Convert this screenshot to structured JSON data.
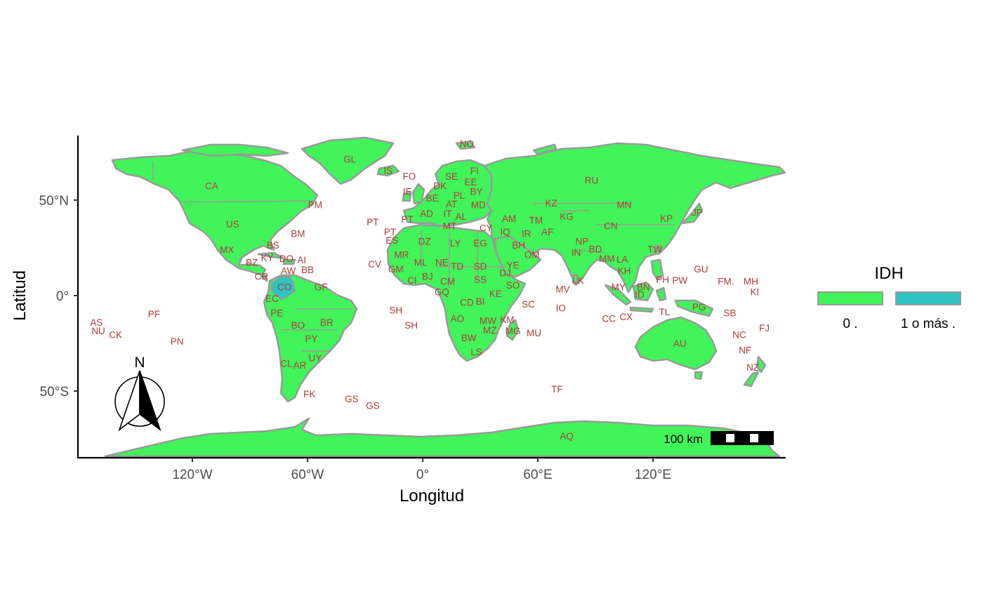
{
  "axes": {
    "x_title": "Longitud",
    "y_title": "Latitud",
    "x_ticks": [
      {
        "label": "120°W",
        "lon": -120
      },
      {
        "label": "60°W",
        "lon": -60
      },
      {
        "label": "0°",
        "lon": 0
      },
      {
        "label": "60°E",
        "lon": 60
      },
      {
        "label": "120°E",
        "lon": 120
      }
    ],
    "y_ticks": [
      {
        "label": "50°N",
        "lat": 50
      },
      {
        "label": "0°",
        "lat": 0
      },
      {
        "label": "50°S",
        "lat": -50
      }
    ]
  },
  "legend": {
    "title": "IDH",
    "items": [
      {
        "label": "0 .",
        "color": "#40f45a"
      },
      {
        "label": "1 o más .",
        "color": "#2fc3c3"
      }
    ]
  },
  "scalebar": {
    "label": "100 km"
  },
  "north_arrow": {
    "label": "N"
  },
  "colors": {
    "land": "#40f45a",
    "highlight": "#2fc3c3",
    "border": "#9a9a9a",
    "label": "#b03a3a"
  },
  "highlighted_countries": [
    "CO"
  ],
  "country_labels": [
    {
      "code": "GL",
      "lon": -38,
      "lat": 71
    },
    {
      "code": "NO",
      "lon": 23,
      "lat": 79
    },
    {
      "code": "IS",
      "lon": -18,
      "lat": 65
    },
    {
      "code": "FO",
      "lon": -7,
      "lat": 62
    },
    {
      "code": "SE",
      "lon": 15,
      "lat": 62
    },
    {
      "code": "FI",
      "lon": 27,
      "lat": 65
    },
    {
      "code": "RU",
      "lon": 88,
      "lat": 60
    },
    {
      "code": "CA",
      "lon": -110,
      "lat": 57
    },
    {
      "code": "EE",
      "lon": 25,
      "lat": 59
    },
    {
      "code": "DK",
      "lon": 9,
      "lat": 57
    },
    {
      "code": "IE",
      "lon": -8,
      "lat": 54
    },
    {
      "code": "BY",
      "lon": 28,
      "lat": 54
    },
    {
      "code": "BE",
      "lon": 5,
      "lat": 50.5
    },
    {
      "code": "PL",
      "lon": 19,
      "lat": 52
    },
    {
      "code": "AT",
      "lon": 15,
      "lat": 47.5
    },
    {
      "code": "MD",
      "lon": 29,
      "lat": 47
    },
    {
      "code": "KZ",
      "lon": 67,
      "lat": 48
    },
    {
      "code": "MN",
      "lon": 105,
      "lat": 47
    },
    {
      "code": "PM",
      "lon": -56,
      "lat": 47
    },
    {
      "code": "US",
      "lon": -99,
      "lat": 37
    },
    {
      "code": "AD",
      "lon": 2,
      "lat": 42.5
    },
    {
      "code": "IT",
      "lon": 13,
      "lat": 42.5
    },
    {
      "code": "AL",
      "lon": 20,
      "lat": 41
    },
    {
      "code": "PT",
      "lon": -26,
      "lat": 38
    },
    {
      "code": "PT",
      "lon": -8,
      "lat": 39.5
    },
    {
      "code": "AM",
      "lon": 45,
      "lat": 40
    },
    {
      "code": "TM",
      "lon": 59,
      "lat": 39
    },
    {
      "code": "KG",
      "lon": 75,
      "lat": 41
    },
    {
      "code": "KP",
      "lon": 127,
      "lat": 40
    },
    {
      "code": "JP",
      "lon": 143,
      "lat": 43
    },
    {
      "code": "CN",
      "lon": 98,
      "lat": 36
    },
    {
      "code": "BM",
      "lon": -65,
      "lat": 32
    },
    {
      "code": "PT",
      "lon": -17,
      "lat": 33
    },
    {
      "code": "MT",
      "lon": 14,
      "lat": 36
    },
    {
      "code": "CY",
      "lon": 33,
      "lat": 35
    },
    {
      "code": "IQ",
      "lon": 43,
      "lat": 33
    },
    {
      "code": "IR",
      "lon": 54,
      "lat": 32
    },
    {
      "code": "AF",
      "lon": 65,
      "lat": 33
    },
    {
      "code": "ES",
      "lon": -16,
      "lat": 28.5
    },
    {
      "code": "DZ",
      "lon": 1,
      "lat": 28
    },
    {
      "code": "LY",
      "lon": 17,
      "lat": 27
    },
    {
      "code": "EG",
      "lon": 30,
      "lat": 27
    },
    {
      "code": "BS",
      "lon": -78,
      "lat": 26
    },
    {
      "code": "BH",
      "lon": 50,
      "lat": 26
    },
    {
      "code": "NP",
      "lon": 83,
      "lat": 28
    },
    {
      "code": "BD",
      "lon": 90,
      "lat": 24
    },
    {
      "code": "TW",
      "lon": 121,
      "lat": 23.7
    },
    {
      "code": "MX",
      "lon": -102,
      "lat": 23.5
    },
    {
      "code": "IN",
      "lon": 80,
      "lat": 22
    },
    {
      "code": "OM",
      "lon": 57,
      "lat": 21
    },
    {
      "code": "MR",
      "lon": -11,
      "lat": 21
    },
    {
      "code": "KY",
      "lon": -81,
      "lat": 19.3
    },
    {
      "code": "DO",
      "lon": -71,
      "lat": 19
    },
    {
      "code": "AI",
      "lon": -63,
      "lat": 18.2
    },
    {
      "code": "BZ",
      "lon": -89,
      "lat": 17
    },
    {
      "code": "ML",
      "lon": -1,
      "lat": 17
    },
    {
      "code": "NE",
      "lon": 10,
      "lat": 17
    },
    {
      "code": "MM",
      "lon": 96,
      "lat": 19
    },
    {
      "code": "LA",
      "lon": 104,
      "lat": 18.5
    },
    {
      "code": "CV",
      "lon": -25,
      "lat": 16
    },
    {
      "code": "YE",
      "lon": 47,
      "lat": 15.5
    },
    {
      "code": "TD",
      "lon": 18,
      "lat": 15
    },
    {
      "code": "SD",
      "lon": 30,
      "lat": 15
    },
    {
      "code": "GM",
      "lon": -14,
      "lat": 13.5
    },
    {
      "code": "AW",
      "lon": -70,
      "lat": 12.5
    },
    {
      "code": "BB",
      "lon": -60,
      "lat": 13
    },
    {
      "code": "DJ",
      "lon": 43,
      "lat": 11.5
    },
    {
      "code": "KH",
      "lon": 105,
      "lat": 12.5
    },
    {
      "code": "GU",
      "lon": 145,
      "lat": 13.5
    },
    {
      "code": "CR",
      "lon": -84,
      "lat": 9.5
    },
    {
      "code": "BJ",
      "lon": 2.5,
      "lat": 9.5
    },
    {
      "code": "CI",
      "lon": -5.5,
      "lat": 7.5
    },
    {
      "code": "CM",
      "lon": 13,
      "lat": 7
    },
    {
      "code": "SS",
      "lon": 30,
      "lat": 8
    },
    {
      "code": "SO",
      "lon": 47,
      "lat": 5
    },
    {
      "code": "LK",
      "lon": 81,
      "lat": 7.5
    },
    {
      "code": "PH",
      "lon": 125,
      "lat": 8
    },
    {
      "code": "PW",
      "lon": 134,
      "lat": 7.5
    },
    {
      "code": "FM.",
      "lon": 158,
      "lat": 7
    },
    {
      "code": "MH",
      "lon": 171,
      "lat": 7
    },
    {
      "code": "CO",
      "lon": -72,
      "lat": 4
    },
    {
      "code": "GF",
      "lon": -53,
      "lat": 4
    },
    {
      "code": "MV",
      "lon": 73,
      "lat": 3
    },
    {
      "code": "MY",
      "lon": 102,
      "lat": 4
    },
    {
      "code": "BN",
      "lon": 115,
      "lat": 4
    },
    {
      "code": "KI",
      "lon": 173,
      "lat": 1.5
    },
    {
      "code": "GQ",
      "lon": 10,
      "lat": 1.5
    },
    {
      "code": "KE",
      "lon": 38,
      "lat": 0.5
    },
    {
      "code": "ID",
      "lon": 113,
      "lat": 0
    },
    {
      "code": "EC",
      "lon": -78.5,
      "lat": -2
    },
    {
      "code": "CD",
      "lon": 23,
      "lat": -4
    },
    {
      "code": "BI",
      "lon": 30,
      "lat": -3.5
    },
    {
      "code": "SC",
      "lon": 55,
      "lat": -5
    },
    {
      "code": "PE",
      "lon": -76,
      "lat": -9.5
    },
    {
      "code": "SH",
      "lon": -14,
      "lat": -8
    },
    {
      "code": "IO",
      "lon": 72,
      "lat": -7
    },
    {
      "code": "TL",
      "lon": 126,
      "lat": -9
    },
    {
      "code": "PG",
      "lon": 144,
      "lat": -6.5
    },
    {
      "code": "SB",
      "lon": 160,
      "lat": -9.5
    },
    {
      "code": "PF",
      "lon": -140,
      "lat": -10
    },
    {
      "code": "BR",
      "lon": -50,
      "lat": -14.5
    },
    {
      "code": "AO",
      "lon": 18,
      "lat": -12.5
    },
    {
      "code": "MW",
      "lon": 34,
      "lat": -13.5
    },
    {
      "code": "KM",
      "lon": 44,
      "lat": -13
    },
    {
      "code": "CC",
      "lon": 97,
      "lat": -12.5
    },
    {
      "code": "CX",
      "lon": 106,
      "lat": -11.5
    },
    {
      "code": "AS",
      "lon": -170,
      "lat": -14.5
    },
    {
      "code": "BO",
      "lon": -65,
      "lat": -16
    },
    {
      "code": "SH",
      "lon": -6,
      "lat": -16
    },
    {
      "code": "MZ",
      "lon": 35,
      "lat": -18.5
    },
    {
      "code": "MG",
      "lon": 47,
      "lat": -19
    },
    {
      "code": "MU",
      "lon": 58,
      "lat": -20
    },
    {
      "code": "NU",
      "lon": -169,
      "lat": -19
    },
    {
      "code": "NC",
      "lon": 165,
      "lat": -21
    },
    {
      "code": "FJ",
      "lon": 178,
      "lat": -17.5
    },
    {
      "code": "CK",
      "lon": -160,
      "lat": -21
    },
    {
      "code": "PY",
      "lon": -58,
      "lat": -23
    },
    {
      "code": "BW",
      "lon": 24,
      "lat": -22.5
    },
    {
      "code": "PN",
      "lon": -128,
      "lat": -24.5
    },
    {
      "code": "AU",
      "lon": 134,
      "lat": -25.5
    },
    {
      "code": "LS",
      "lon": 28,
      "lat": -30
    },
    {
      "code": "NF",
      "lon": 168,
      "lat": -29
    },
    {
      "code": "UY",
      "lon": -56,
      "lat": -33
    },
    {
      "code": "CL",
      "lon": -71,
      "lat": -36
    },
    {
      "code": "AR",
      "lon": -64,
      "lat": -37
    },
    {
      "code": "NZ",
      "lon": 172,
      "lat": -38
    },
    {
      "code": "TF",
      "lon": 70,
      "lat": -49.5
    },
    {
      "code": "FK",
      "lon": -59,
      "lat": -52
    },
    {
      "code": "GS",
      "lon": -37,
      "lat": -54.5
    },
    {
      "code": "GS",
      "lon": -26,
      "lat": -58
    },
    {
      "code": "AQ",
      "lon": 75,
      "lat": -74
    }
  ]
}
